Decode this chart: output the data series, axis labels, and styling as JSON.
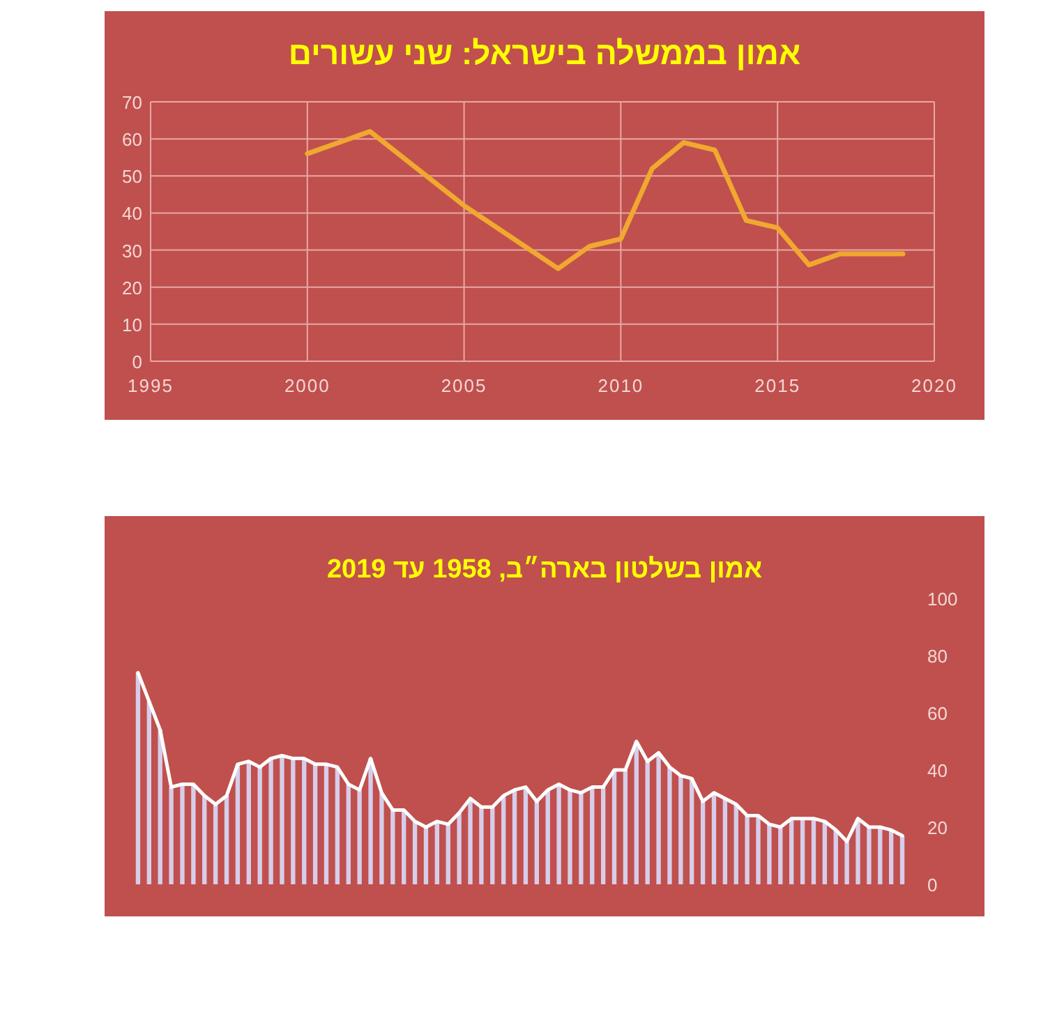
{
  "chart_data": [
    {
      "type": "line",
      "title": "אמון בממשלה בישראל: שני עשורים",
      "x": [
        2000,
        2002,
        2005,
        2008,
        2009,
        2010,
        2011,
        2012,
        2013,
        2014,
        2015,
        2016,
        2017,
        2019
      ],
      "series": [
        {
          "color": "#f0a830",
          "values": [
            56,
            62,
            42,
            25,
            31,
            33,
            52,
            59,
            57,
            38,
            36,
            26,
            29,
            29
          ]
        }
      ],
      "xlim": [
        1995,
        2020
      ],
      "xticks": [
        1995,
        2000,
        2005,
        2010,
        2015,
        2020
      ],
      "ylim": [
        0,
        70
      ],
      "yticks": [
        0,
        10,
        20,
        30,
        40,
        50,
        60,
        70
      ],
      "grid": true
    },
    {
      "type": "bar",
      "title": "אמון בשלטון בארה״ב, 1958 עד 2019",
      "categories": [
        null,
        null,
        null,
        null,
        null,
        null,
        null,
        null,
        null,
        null,
        null,
        null,
        null,
        null,
        null,
        null,
        null,
        null,
        null,
        null,
        null,
        null,
        null,
        null,
        null,
        null,
        null,
        null,
        null,
        null,
        null,
        null,
        null,
        null,
        null,
        null,
        null,
        null,
        null,
        null,
        null,
        null,
        null,
        null,
        null,
        null,
        null,
        null,
        null,
        null,
        null,
        null,
        null,
        null,
        null,
        null,
        null,
        null,
        null,
        null,
        null,
        null,
        null,
        null,
        null,
        null,
        null,
        null,
        null,
        null
      ],
      "series": [
        {
          "type": "bar",
          "color": "#d6cdea",
          "values": [
            74,
            64,
            54,
            34,
            35,
            35,
            31,
            28,
            31,
            42,
            43,
            41,
            44,
            45,
            44,
            44,
            42,
            42,
            41,
            35,
            33,
            44,
            32,
            26,
            26,
            22,
            20,
            22,
            21,
            25,
            30,
            27,
            27,
            31,
            33,
            34,
            29,
            33,
            35,
            33,
            32,
            34,
            34,
            40,
            40,
            50,
            43,
            46,
            41,
            38,
            37,
            29,
            32,
            30,
            28,
            24,
            24,
            21,
            20,
            23,
            23,
            23,
            22,
            19,
            15,
            23,
            20,
            20,
            19,
            17
          ]
        },
        {
          "type": "line",
          "color": "#ffffff",
          "values": [
            74,
            64,
            54,
            34,
            35,
            35,
            31,
            28,
            31,
            42,
            43,
            41,
            44,
            45,
            44,
            44,
            42,
            42,
            41,
            35,
            33,
            44,
            32,
            26,
            26,
            22,
            20,
            22,
            21,
            25,
            30,
            27,
            27,
            31,
            33,
            34,
            29,
            33,
            35,
            33,
            32,
            34,
            34,
            40,
            40,
            50,
            43,
            46,
            41,
            38,
            37,
            29,
            32,
            30,
            28,
            24,
            24,
            21,
            20,
            23,
            23,
            23,
            22,
            19,
            15,
            23,
            20,
            20,
            19,
            17
          ]
        }
      ],
      "ylim": [
        0,
        100
      ],
      "yticks": [
        0,
        20,
        40,
        60,
        80,
        100
      ],
      "grid": false
    }
  ]
}
